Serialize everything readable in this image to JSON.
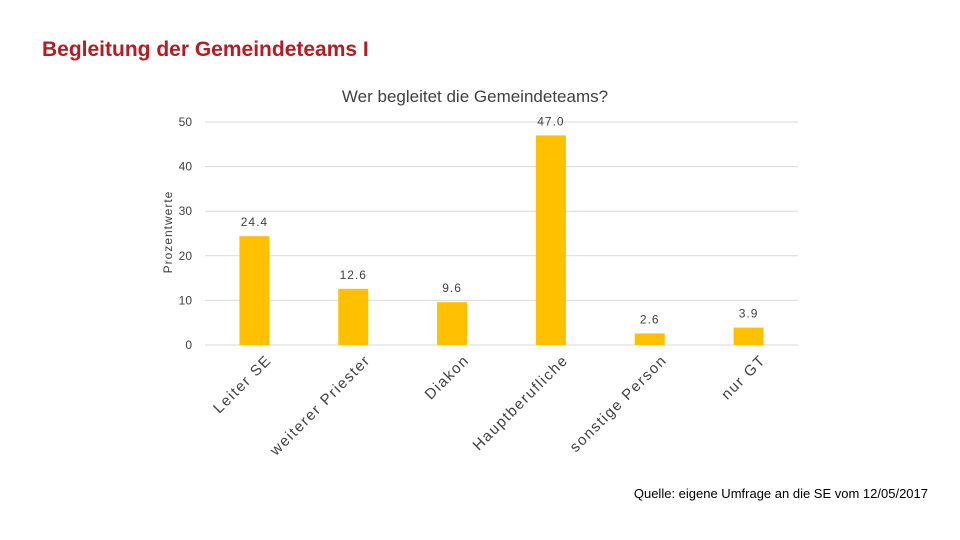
{
  "slide": {
    "title": "Begleitung der Gemeindeteams I",
    "source": "Quelle: eigene Umfrage an die SE vom 12/05/2017"
  },
  "colors": {
    "title": "#B01E24",
    "bar": "#FFC000",
    "grid": "#D9D9D9",
    "text": "#404040"
  },
  "chart_data": {
    "type": "bar",
    "title": "Wer begleitet die Gemeindeteams?",
    "xlabel": "",
    "ylabel": "Prozentwerte",
    "categories": [
      "Leiter SE",
      "weiterer Priester",
      "Diakon",
      "Hauptberufliche",
      "sonstige Person",
      "nur GT"
    ],
    "values": [
      24.4,
      12.6,
      9.6,
      47.0,
      2.6,
      3.9
    ],
    "value_labels": [
      "24.4",
      "12.6",
      "9.6",
      "47.0",
      "2.6",
      "3.9"
    ],
    "ylim": [
      0,
      50
    ],
    "yticks": [
      "0",
      "10",
      "20",
      "30",
      "40",
      "50"
    ],
    "grid": true,
    "legend": "none"
  }
}
